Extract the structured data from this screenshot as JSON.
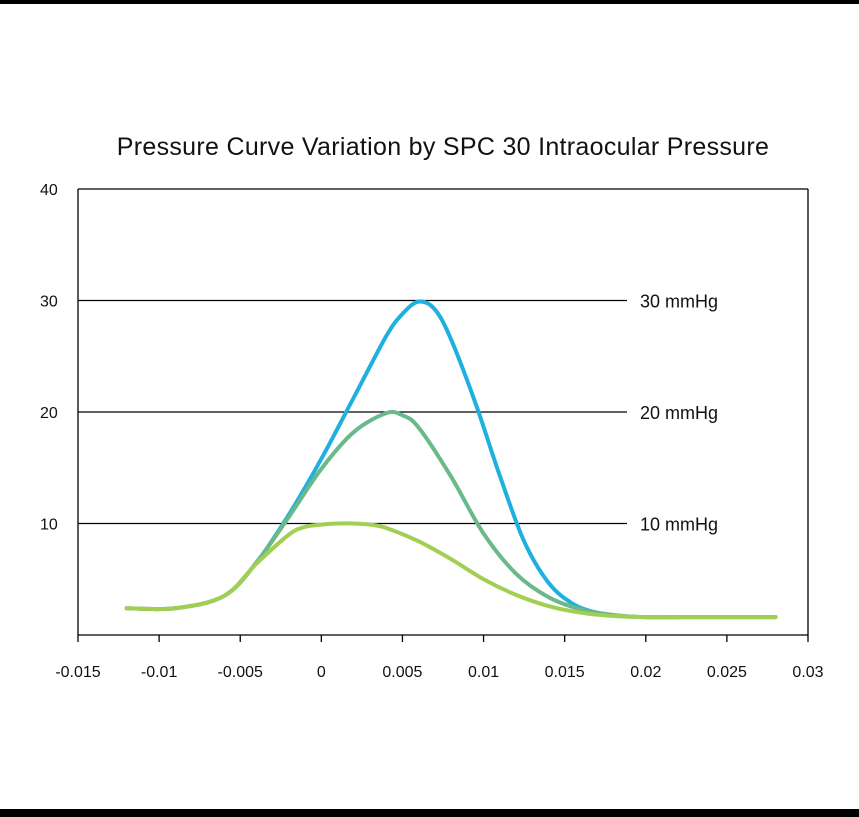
{
  "chart_data": {
    "type": "line",
    "title": "Pressure Curve Variation by SPC 30 Intraocular Pressure",
    "xlabel": "",
    "ylabel": "",
    "xlim": [
      -0.015,
      0.03
    ],
    "ylim": [
      0,
      40
    ],
    "x_ticks": [
      "-0.015",
      "-0.01",
      "-0.005",
      "0",
      "0.005",
      "0.01",
      "0.015",
      "0.02",
      "0.025",
      "0.03"
    ],
    "y_ticks": [
      "10",
      "20",
      "30",
      "40"
    ],
    "grid": false,
    "reference_lines": [
      {
        "y": 30,
        "label": "30 mmHg"
      },
      {
        "y": 20,
        "label": "20 mmHg"
      },
      {
        "y": 10,
        "label": "10 mmHg"
      }
    ],
    "series": [
      {
        "color": "#1fb0e0",
        "x": [
          -0.012,
          -0.009,
          -0.006,
          -0.004,
          -0.002,
          0,
          0.002,
          0.004,
          0.005,
          0.006,
          0.007,
          0.008,
          0.0095,
          0.011,
          0.0125,
          0.014,
          0.0155,
          0.017,
          0.0185,
          0.02,
          0.022,
          0.025,
          0.028
        ],
        "y": [
          2.4,
          2.4,
          3.5,
          6.5,
          10.8,
          15.8,
          21.3,
          26.8,
          28.8,
          29.9,
          29.2,
          26.5,
          20.8,
          14.3,
          8.4,
          4.7,
          2.8,
          2.0,
          1.7,
          1.6,
          1.6,
          1.6,
          1.6
        ]
      },
      {
        "color": "#6ab98a",
        "x": [
          -0.012,
          -0.009,
          -0.006,
          -0.004,
          -0.002,
          0,
          0.002,
          0.004,
          0.005,
          0.006,
          0.008,
          0.01,
          0.012,
          0.014,
          0.016,
          0.018,
          0.02,
          0.022,
          0.025,
          0.028
        ],
        "y": [
          2.4,
          2.4,
          3.5,
          6.5,
          10.6,
          14.9,
          18.2,
          19.9,
          19.7,
          18.6,
          14.2,
          9.1,
          5.5,
          3.4,
          2.3,
          1.8,
          1.6,
          1.6,
          1.6,
          1.6
        ]
      },
      {
        "color": "#a2cf52",
        "x": [
          -0.012,
          -0.009,
          -0.006,
          -0.004,
          -0.002,
          -0.001,
          0,
          0.001,
          0.002,
          0.003,
          0.004,
          0.006,
          0.008,
          0.01,
          0.012,
          0.014,
          0.016,
          0.018,
          0.02,
          0.022,
          0.025,
          0.028
        ],
        "y": [
          2.4,
          2.4,
          3.5,
          6.4,
          9.0,
          9.7,
          9.9,
          10.0,
          10.0,
          9.9,
          9.6,
          8.4,
          6.8,
          5.0,
          3.6,
          2.6,
          2.0,
          1.7,
          1.6,
          1.6,
          1.6,
          1.6
        ]
      }
    ]
  }
}
